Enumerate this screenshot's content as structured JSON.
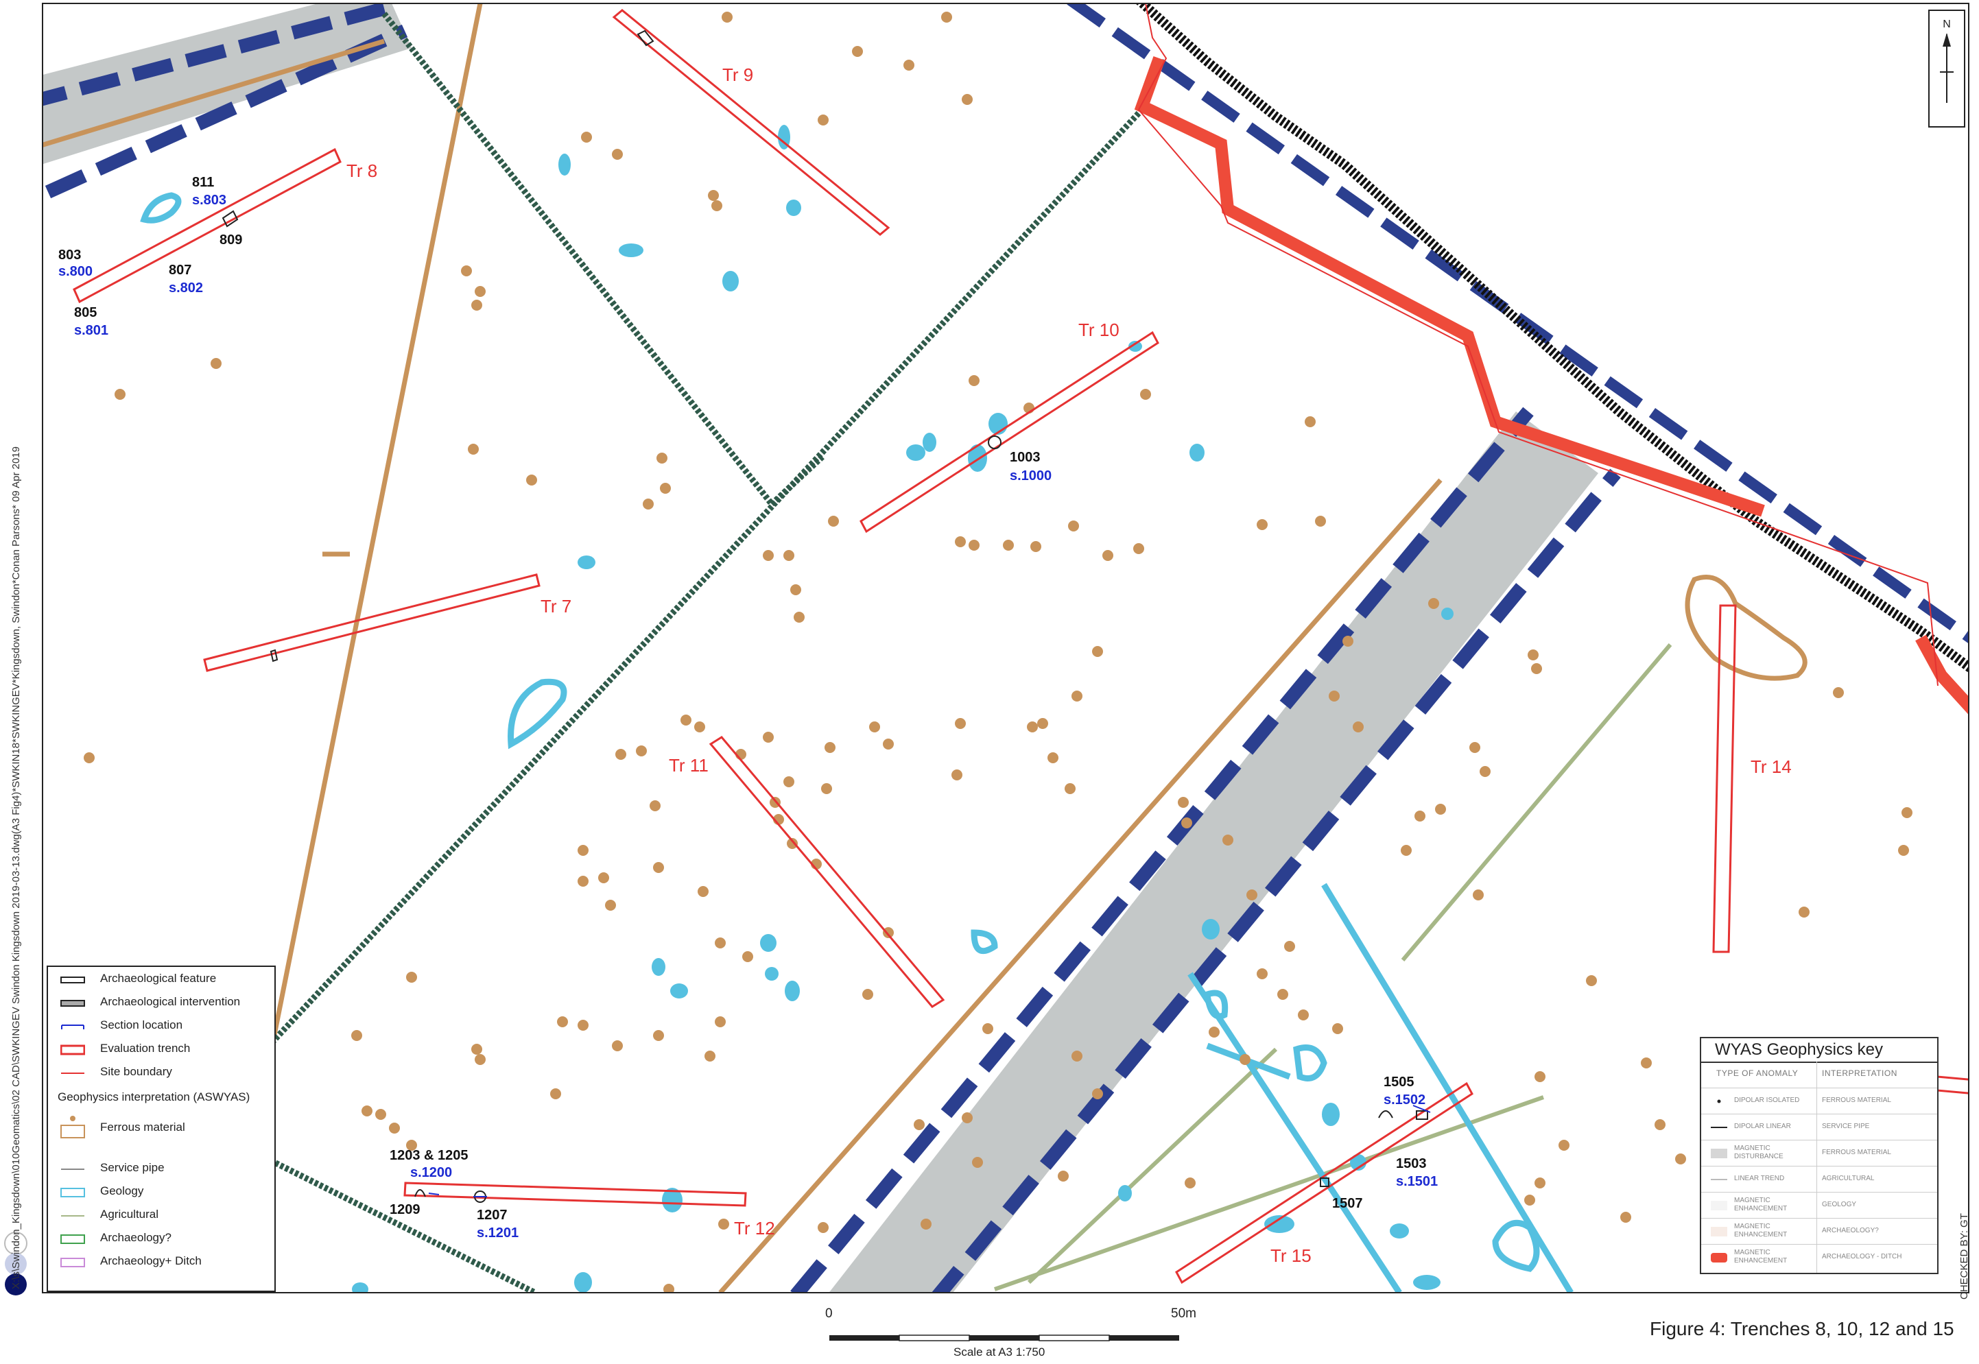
{
  "colors": {
    "trench": "#e53232",
    "road_grey": "#c4c8c8",
    "road_dash": "#2b3f8f",
    "ferrous": "#c8935a",
    "geology": "#55c0e0",
    "agricultural": "#a6b787",
    "service": "#2f5a4a",
    "ditch": "#ee4b3a",
    "label_black": "#111111",
    "label_blue": "#1b2ad1"
  },
  "trench_labels": {
    "tr7": "Tr 7",
    "tr8": "Tr 8",
    "tr9": "Tr 9",
    "tr10": "Tr 10",
    "tr11": "Tr 11",
    "tr12": "Tr 12",
    "tr14": "Tr 14",
    "tr15": "Tr 15"
  },
  "feature_labels": {
    "f811": "811",
    "s803": "s.803",
    "f809": "809",
    "f803": "803",
    "s800": "s.800",
    "f807": "807",
    "s802": "s.802",
    "f805": "805",
    "s801": "s.801",
    "f1003": "1003",
    "s1000": "s.1000",
    "f1203_1205": "1203 & 1205",
    "s1200": "s.1200",
    "f1209": "1209",
    "f1207": "1207",
    "s1201": "s.1201",
    "f1505": "1505",
    "s1502": "s.1502",
    "f1503": "1503",
    "s1501": "s.1501",
    "f1507": "1507"
  },
  "north_arrow": "N",
  "side_path_text": "X:\\s\\Swindon_Kingsdown\\010Geomatics\\02 CAD\\SWKINGEV Swindon Kingsdown 2019-03-13.dwg(A3 Fig4)*SWKIN18*SWKINGEV*Kingsdown, Swindon*Conan Parsons* 09 Apr 2019",
  "checked_by": "CHECKED BY: GT",
  "legend": {
    "items": [
      {
        "label": "Archaeological feature",
        "symbol": "feature"
      },
      {
        "label": "Archaeological intervention",
        "symbol": "intervention"
      },
      {
        "label": "Section location",
        "symbol": "section"
      },
      {
        "label": "Evaluation trench",
        "symbol": "trench"
      },
      {
        "label": "Site boundary",
        "symbol": "boundary"
      }
    ],
    "geophysics_heading": "Geophysics interpretation (ASWYAS)",
    "geo_items": [
      {
        "label": "Ferrous material",
        "symbol": "ferrous"
      },
      {
        "label": "Service pipe",
        "symbol": "service"
      },
      {
        "label": "Geology",
        "symbol": "geology"
      },
      {
        "label": "Agricultural",
        "symbol": "agricultural"
      },
      {
        "label": "Archaeology?",
        "symbol": "archaeology"
      },
      {
        "label": "Archaeology+ Ditch",
        "symbol": "ditch"
      }
    ]
  },
  "wyas_key": {
    "title": "WYAS Geophysics key",
    "col_type": "TYPE OF ANOMALY",
    "col_interp": "INTERPRETATION",
    "rows": [
      {
        "type": "DIPOLAR ISOLATED",
        "interp": "FERROUS MATERIAL"
      },
      {
        "type": "DIPOLAR LINEAR",
        "interp": "SERVICE PIPE"
      },
      {
        "type": "MAGNETIC DISTURBANCE",
        "interp": "FERROUS MATERIAL"
      },
      {
        "type": "LINEAR TREND",
        "interp": "AGRICULTURAL"
      },
      {
        "type": "MAGNETIC ENHANCEMENT",
        "interp": "GEOLOGY"
      },
      {
        "type": "MAGNETIC ENHANCEMENT",
        "interp": "ARCHAEOLOGY?"
      },
      {
        "type": "MAGNETIC ENHANCEMENT",
        "interp": "ARCHAEOLOGY - DITCH"
      }
    ]
  },
  "scale": {
    "zero": "0",
    "end": "50m",
    "caption": "Scale at A3 1:750"
  },
  "figure_caption": "Figure 4: Trenches 8, 10, 12 and 15"
}
